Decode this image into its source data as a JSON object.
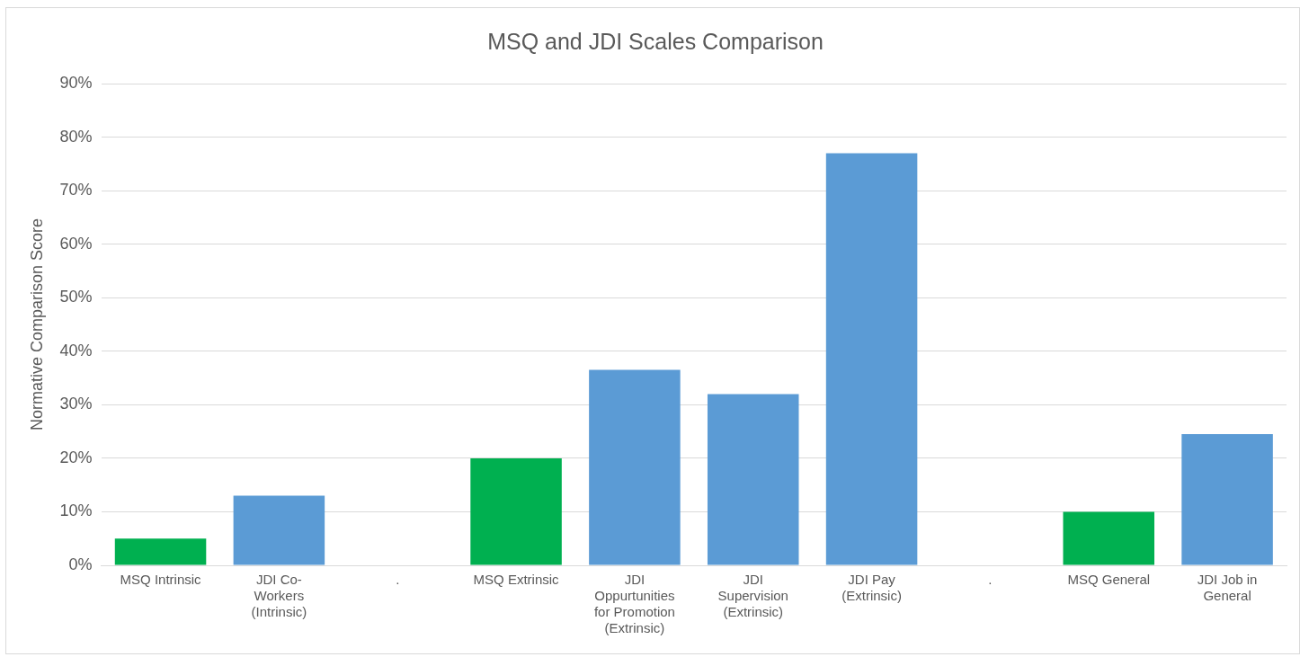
{
  "chart_data": {
    "type": "bar",
    "title": "MSQ and JDI Scales Comparison",
    "ylabel": "Normative Comparison Score",
    "categories": [
      "MSQ Intrinsic",
      "JDI Co-Workers (Intrinsic)",
      ".",
      "MSQ Extrinsic",
      "JDI Oppurtunities for Promotion (Extrinsic)",
      "JDI Supervision (Extrinsic)",
      "JDI Pay (Extrinsic)",
      ".",
      "MSQ General",
      "JDI Job in General"
    ],
    "values": [
      5,
      13,
      null,
      20,
      36.5,
      32,
      77,
      null,
      10,
      24.5
    ],
    "colors": [
      "#00b050",
      "#5b9bd5",
      "#5b9bd5",
      "#00b050",
      "#5b9bd5",
      "#5b9bd5",
      "#5b9bd5",
      "#5b9bd5",
      "#00b050",
      "#5b9bd5"
    ],
    "ylim": [
      0,
      90
    ],
    "yticks": [
      {
        "value": 0,
        "label": "0%"
      },
      {
        "value": 10,
        "label": "10%"
      },
      {
        "value": 20,
        "label": "20%"
      },
      {
        "value": 30,
        "label": "30%"
      },
      {
        "value": 40,
        "label": "40%"
      },
      {
        "value": 50,
        "label": "50%"
      },
      {
        "value": 60,
        "label": "60%"
      },
      {
        "value": 70,
        "label": "70%"
      },
      {
        "value": 80,
        "label": "80%"
      },
      {
        "value": 90,
        "label": "90%"
      }
    ],
    "grid": "y",
    "legend": false
  }
}
